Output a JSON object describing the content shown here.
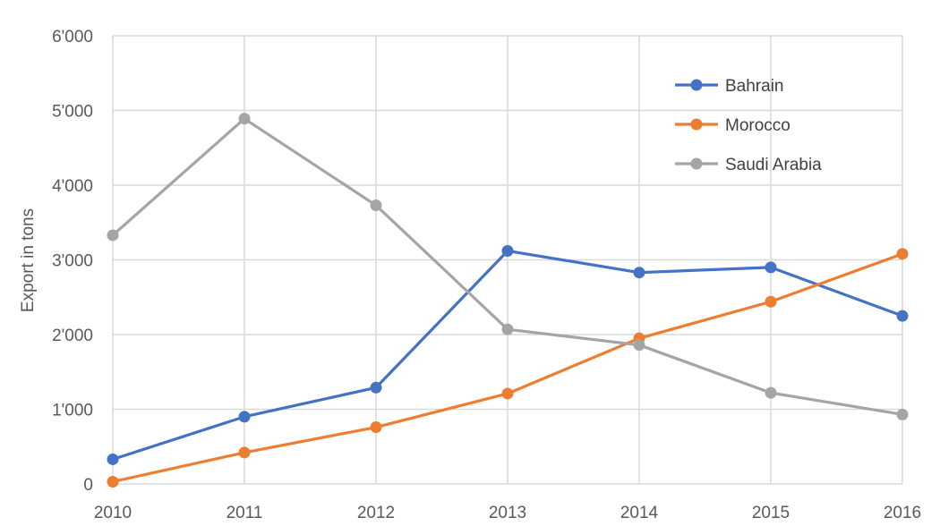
{
  "chart_data": {
    "type": "line",
    "title": "",
    "xlabel": "",
    "ylabel": "Export in tons",
    "x": [
      "2010",
      "2011",
      "2012",
      "2013",
      "2014",
      "2015",
      "2016"
    ],
    "ylim": [
      0,
      6000
    ],
    "yticks": [
      0,
      1000,
      2000,
      3000,
      4000,
      5000,
      6000
    ],
    "ytick_labels": [
      "0",
      "1'000",
      "2'000",
      "3'000",
      "4'000",
      "5'000",
      "6'000"
    ],
    "grid": true,
    "legend_position": "top-right",
    "series": [
      {
        "name": "Bahrain",
        "color": "#4472c4",
        "values": [
          330,
          900,
          1290,
          3120,
          2830,
          2900,
          2250
        ]
      },
      {
        "name": "Morocco",
        "color": "#ed7d31",
        "values": [
          30,
          420,
          760,
          1210,
          1950,
          2440,
          3080
        ]
      },
      {
        "name": "Saudi Arabia",
        "color": "#a5a5a5",
        "values": [
          3330,
          4890,
          3730,
          2070,
          1860,
          1220,
          930
        ]
      }
    ]
  }
}
